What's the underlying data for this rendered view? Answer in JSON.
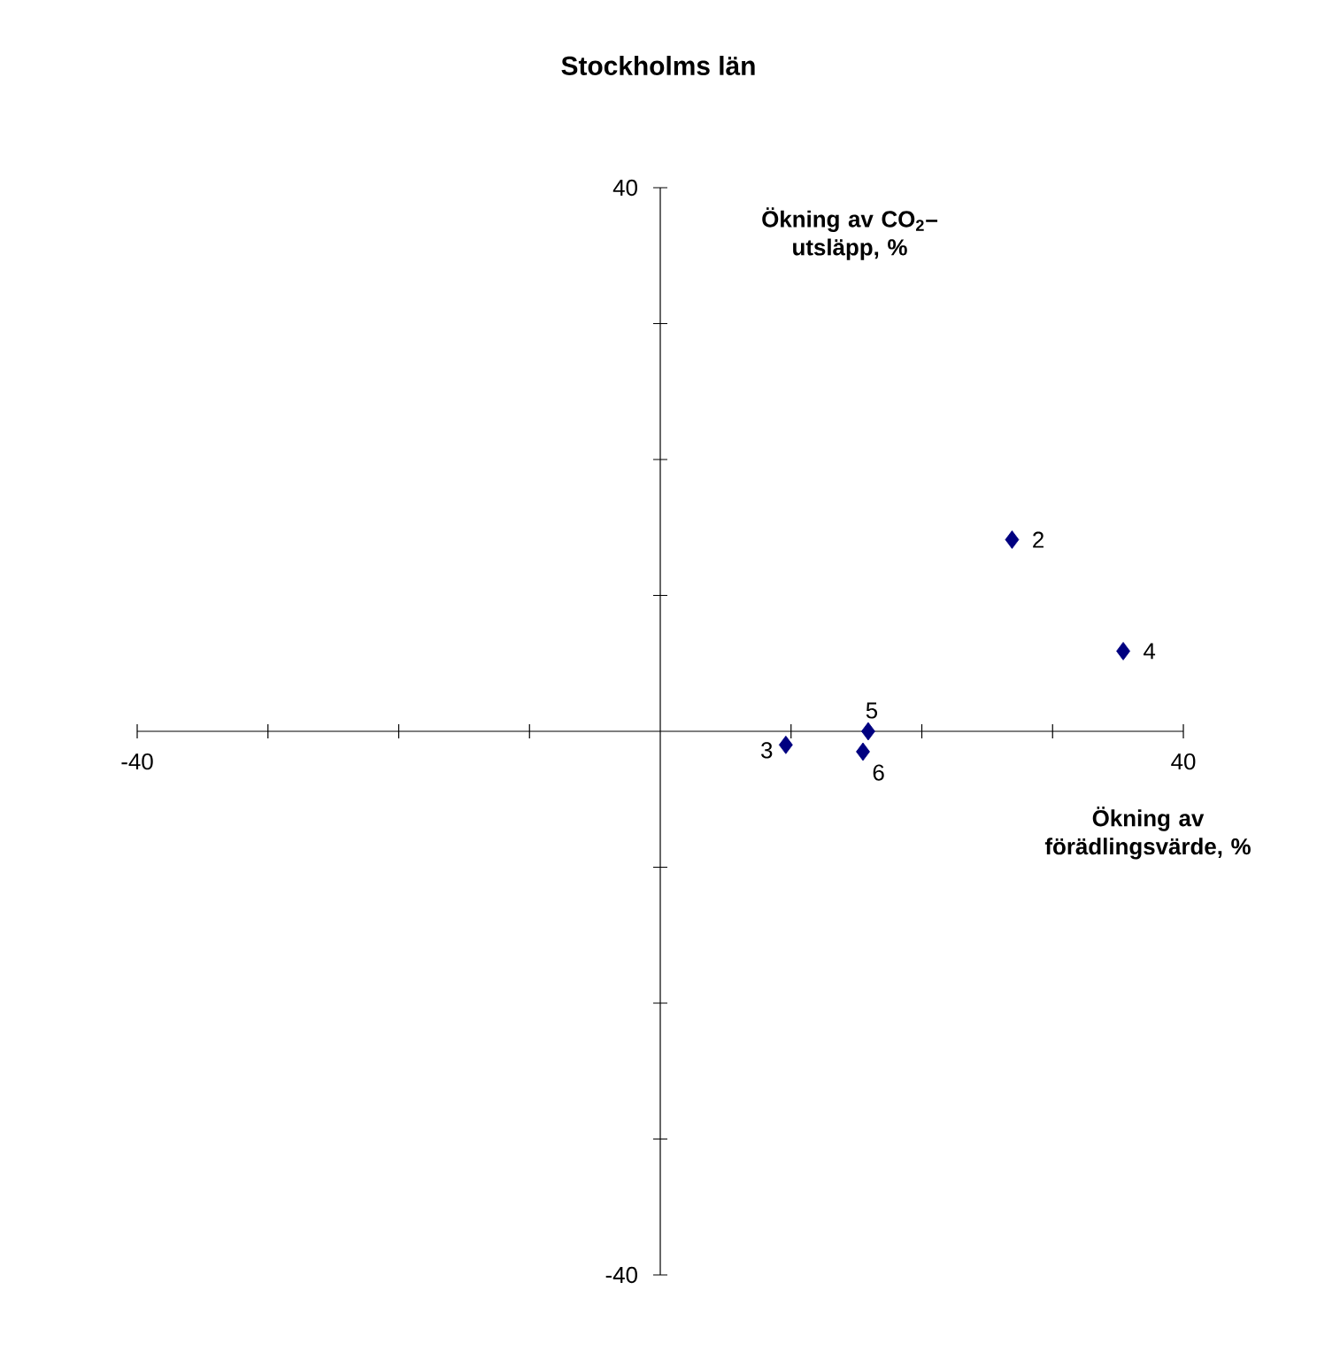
{
  "chart_data": {
    "type": "scatter",
    "title": "Stockholms län",
    "xlabel": "Ökning av förädlingsvärde, %",
    "ylabel": "Ökning av CO$_{2}$– utsläpp, %",
    "x": [
      26.9,
      9.6,
      35.4,
      15.9,
      15.5
    ],
    "series": [
      {
        "color": "#000080",
        "values": [
          14.1,
          -1.0,
          5.9,
          0,
          -1.5
        ]
      }
    ],
    "annotations": [
      {
        "text": "2",
        "x": 26.9,
        "y": 14.1
      },
      {
        "text": "3",
        "x": 9.6,
        "y": -1.0
      },
      {
        "text": "4",
        "x": 35.4,
        "y": 5.9
      },
      {
        "text": "5",
        "x": 15.9,
        "y": 0
      },
      {
        "text": "6",
        "x": 15.5,
        "y": -1.5
      }
    ],
    "xlim": [
      -40,
      40
    ],
    "ylim": [
      -40,
      40
    ],
    "xticks": [
      -40,
      {
        "value": -30,
        "label": null
      },
      {
        "value": -20,
        "label": null
      },
      {
        "value": -10,
        "label": null
      },
      {
        "value": 0,
        "label": null
      },
      {
        "value": 10,
        "label": null
      },
      {
        "value": 20,
        "label": null
      },
      {
        "value": 30,
        "label": null
      },
      40
    ],
    "yticks": [
      -40,
      {
        "value": -30,
        "label": null
      },
      {
        "value": -20,
        "label": null
      },
      {
        "value": -10,
        "label": null
      },
      {
        "value": 0,
        "label": null
      },
      {
        "value": 10,
        "label": null
      },
      {
        "value": 20,
        "label": null
      },
      {
        "value": 30,
        "label": null
      },
      40
    ],
    "marker": "diamond",
    "grid": false
  }
}
